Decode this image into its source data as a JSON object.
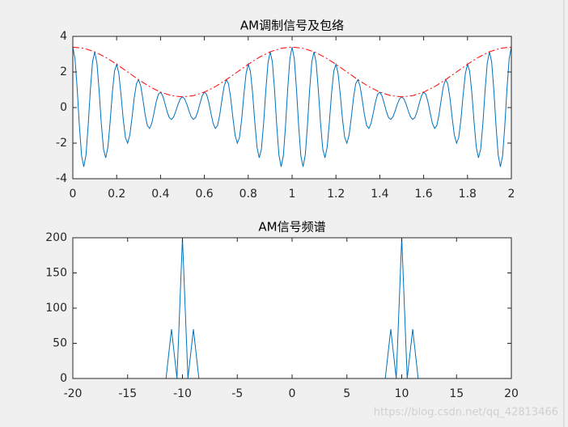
{
  "chart_data": [
    {
      "type": "line",
      "title": "AM调制信号及包络",
      "xlim": [
        0,
        2
      ],
      "ylim": [
        -4,
        4
      ],
      "xticks": [
        0,
        0.2,
        0.4,
        0.6,
        0.8,
        1,
        1.2,
        1.4,
        1.6,
        1.8,
        2
      ],
      "yticks": [
        -4,
        -2,
        0,
        2,
        4
      ],
      "series": [
        {
          "color": "#0072bd",
          "dash": "solid",
          "x": [
            0,
            0.01,
            0.02,
            0.03,
            0.04,
            0.05,
            0.06,
            0.07,
            0.08,
            0.09,
            0.1,
            0.11,
            0.12,
            0.13,
            0.14,
            0.15,
            0.16,
            0.17,
            0.18,
            0.19,
            0.2,
            0.21,
            0.22,
            0.23,
            0.24,
            0.25,
            0.26,
            0.27,
            0.28,
            0.29,
            0.3,
            0.31,
            0.32,
            0.33,
            0.34,
            0.35,
            0.36,
            0.37,
            0.38,
            0.39,
            0.4,
            0.41,
            0.42,
            0.43,
            0.44,
            0.45,
            0.46,
            0.47,
            0.48,
            0.49,
            0.5,
            0.51,
            0.52,
            0.53,
            0.54,
            0.55,
            0.56,
            0.57,
            0.58,
            0.59,
            0.6,
            0.61,
            0.62,
            0.63,
            0.64,
            0.65,
            0.66,
            0.67,
            0.68,
            0.69,
            0.7,
            0.71,
            0.72,
            0.73,
            0.74,
            0.75,
            0.76,
            0.77,
            0.78,
            0.79,
            0.8,
            0.81,
            0.82,
            0.83,
            0.84,
            0.85,
            0.86,
            0.87,
            0.88,
            0.89,
            0.9,
            0.91,
            0.92,
            0.93,
            0.94,
            0.95,
            0.96,
            0.97,
            0.98,
            0.99,
            1,
            1.01,
            1.02,
            1.03,
            1.04,
            1.05,
            1.06,
            1.07,
            1.08,
            1.09,
            1.1,
            1.11,
            1.12,
            1.13,
            1.14,
            1.15,
            1.16,
            1.17,
            1.18,
            1.19,
            1.2,
            1.21,
            1.22,
            1.23,
            1.24,
            1.25,
            1.26,
            1.27,
            1.28,
            1.29,
            1.3,
            1.31,
            1.32,
            1.33,
            1.34,
            1.35,
            1.36,
            1.37,
            1.38,
            1.39,
            1.4,
            1.41,
            1.42,
            1.43,
            1.44,
            1.45,
            1.46,
            1.47,
            1.48,
            1.49,
            1.5,
            1.51,
            1.52,
            1.53,
            1.54,
            1.55,
            1.56,
            1.57,
            1.58,
            1.59,
            1.6,
            1.61,
            1.62,
            1.63,
            1.64,
            1.65,
            1.66,
            1.67,
            1.68,
            1.69,
            1.7,
            1.71,
            1.72,
            1.73,
            1.74,
            1.75,
            1.76,
            1.77,
            1.78,
            1.79,
            1.8,
            1.81,
            1.82,
            1.83,
            1.84,
            1.85,
            1.86,
            1.87,
            1.88,
            1.89,
            1.9,
            1.91,
            1.92,
            1.93,
            1.94,
            1.95,
            1.96,
            1.97,
            1.98,
            1.99,
            2
          ],
          "values": [
            3.4,
            2.748,
            1.047,
            -1.043,
            -2.716,
            -3.331,
            -2.671,
            -1.01,
            0.997,
            2.574,
            3.133,
            2.491,
            0.933,
            -0.914,
            -2.34,
            -2.823,
            -2.225,
            -0.827,
            0.802,
            2.035,
            2.433,
            1.9,
            0.699,
            -0.672,
            -1.689,
            -2,
            -1.547,
            -0.564,
            0.537,
            1.336,
            1.567,
            1.201,
            0.434,
            -0.409,
            -1.011,
            -1.177,
            -0.896,
            -0.322,
            0.303,
            0.745,
            0.867,
            0.662,
            0.239,
            -0.226,
            -0.565,
            -0.669,
            -0.52,
            -0.193,
            0.189,
            0.488,
            0.6,
            0.488,
            0.189,
            -0.193,
            -0.52,
            -0.669,
            -0.565,
            -0.226,
            0.239,
            0.662,
            0.867,
            0.745,
            0.303,
            -0.322,
            -0.896,
            -1.177,
            -1.011,
            -0.409,
            0.434,
            1.201,
            1.567,
            1.336,
            0.537,
            -0.564,
            -1.547,
            -2,
            -1.689,
            -0.672,
            0.699,
            1.9,
            2.433,
            2.035,
            0.802,
            -0.827,
            -2.225,
            -2.823,
            -2.34,
            -0.914,
            0.933,
            2.491,
            3.133,
            2.574,
            0.997,
            -1.01,
            -2.671,
            -3.331,
            -2.716,
            -1.043,
            1.047,
            2.748,
            3.4,
            2.748,
            1.047,
            -1.043,
            -2.716,
            -3.331,
            -2.671,
            -1.01,
            0.997,
            2.574,
            3.133,
            2.491,
            0.933,
            -0.914,
            -2.34,
            -2.823,
            -2.225,
            -0.827,
            0.802,
            2.035,
            2.433,
            1.9,
            0.699,
            -0.672,
            -1.689,
            -2,
            -1.547,
            -0.564,
            0.537,
            1.336,
            1.567,
            1.201,
            0.434,
            -0.409,
            -1.011,
            -1.177,
            -0.896,
            -0.322,
            0.303,
            0.745,
            0.867,
            0.662,
            0.239,
            -0.226,
            -0.565,
            -0.669,
            -0.52,
            -0.193,
            0.189,
            0.488,
            0.6,
            0.488,
            0.189,
            -0.193,
            -0.52,
            -0.669,
            -0.565,
            -0.226,
            0.239,
            0.662,
            0.867,
            0.745,
            0.303,
            -0.322,
            -0.896,
            -1.177,
            -1.011,
            -0.409,
            0.434,
            1.201,
            1.567,
            1.336,
            0.537,
            -0.564,
            -1.547,
            -2,
            -1.689,
            -0.672,
            0.699,
            1.9,
            2.433,
            2.035,
            0.802,
            -0.827,
            -2.225,
            -2.823,
            -2.34,
            -0.914,
            0.933,
            2.491,
            3.133,
            2.574,
            0.997,
            -1.01,
            -2.671,
            -3.331,
            -2.716,
            -1.043,
            1.047,
            2.748,
            3.4
          ]
        },
        {
          "color": "#ff0000",
          "dash": "dash-dot",
          "x": [
            0,
            0.05,
            0.1,
            0.15,
            0.2,
            0.25,
            0.3,
            0.35,
            0.4,
            0.45,
            0.5,
            0.55,
            0.6,
            0.65,
            0.7,
            0.75,
            0.8,
            0.85,
            0.9,
            0.95,
            1,
            1.05,
            1.1,
            1.15,
            1.2,
            1.25,
            1.3,
            1.35,
            1.4,
            1.45,
            1.5,
            1.55,
            1.6,
            1.65,
            1.7,
            1.75,
            1.8,
            1.85,
            1.9,
            1.95,
            2
          ],
          "values": [
            3.4,
            3.331,
            3.133,
            2.823,
            2.433,
            2,
            1.567,
            1.177,
            0.867,
            0.669,
            0.6,
            0.669,
            0.867,
            1.177,
            1.567,
            2,
            2.433,
            2.823,
            3.133,
            3.331,
            3.4,
            3.331,
            3.133,
            2.823,
            2.433,
            2,
            1.567,
            1.177,
            0.867,
            0.669,
            0.6,
            0.669,
            0.867,
            1.177,
            1.567,
            2,
            2.433,
            2.823,
            3.133,
            3.331,
            3.4
          ]
        }
      ]
    },
    {
      "type": "line",
      "title": "AM信号频谱",
      "xlim": [
        -20,
        20
      ],
      "ylim": [
        0,
        200
      ],
      "xticks": [
        -20,
        -15,
        -10,
        -5,
        0,
        5,
        10,
        15,
        20
      ],
      "yticks": [
        0,
        50,
        100,
        150,
        200
      ],
      "series": [
        {
          "color": "#0072bd",
          "dash": "solid",
          "x": [
            -20,
            -19.5,
            -19,
            -18.5,
            -18,
            -17.5,
            -17,
            -16.5,
            -16,
            -15.5,
            -15,
            -14.5,
            -14,
            -13.5,
            -13,
            -12.5,
            -12,
            -11.5,
            -11,
            -10.5,
            -10,
            -9.5,
            -9,
            -8.5,
            -8,
            -7.5,
            -7,
            -6.5,
            -6,
            -5.5,
            -5,
            -4.5,
            -4,
            -3.5,
            -3,
            -2.5,
            -2,
            -1.5,
            -1,
            -0.5,
            0,
            0.5,
            1,
            1.5,
            2,
            2.5,
            3,
            3.5,
            4,
            4.5,
            5,
            5.5,
            6,
            6.5,
            7,
            7.5,
            8,
            8.5,
            9,
            9.5,
            10,
            10.5,
            11,
            11.5,
            12,
            12.5,
            13,
            13.5,
            14,
            14.5,
            15,
            15.5,
            16,
            16.5,
            17,
            17.5,
            18,
            18.5,
            19,
            19.5,
            20
          ],
          "values": [
            0,
            0,
            0,
            0,
            0,
            0,
            0,
            0,
            0,
            0,
            0,
            0,
            0,
            0,
            0,
            0,
            0,
            0,
            70,
            0,
            200,
            0,
            70,
            0,
            0,
            0,
            0,
            0,
            0,
            0,
            0,
            0,
            0,
            0,
            0,
            0,
            0,
            0,
            0,
            0,
            0,
            0,
            0,
            0,
            0,
            0,
            0,
            0,
            0,
            0,
            0,
            0,
            0,
            0,
            0,
            0,
            0,
            0,
            70,
            0,
            200,
            0,
            70,
            0,
            0,
            0,
            0,
            0,
            0,
            0,
            0,
            0,
            0,
            0,
            0,
            0,
            0,
            0,
            0,
            0,
            0
          ]
        }
      ]
    }
  ],
  "watermark": "https://blog.csdn.net/qq_42813466"
}
